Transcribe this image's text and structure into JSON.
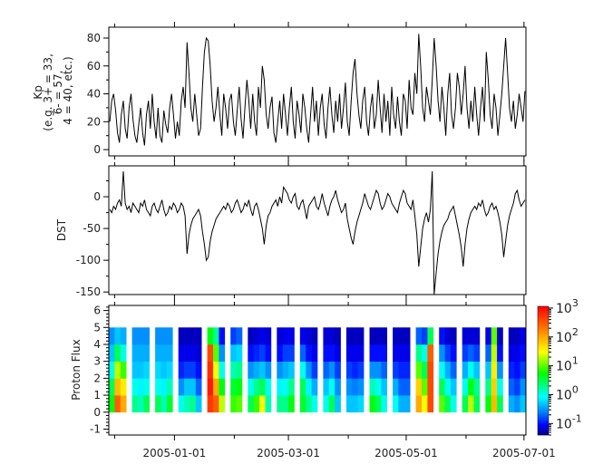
{
  "chart_data": [
    {
      "type": "line",
      "ylabel": [
        "Kp",
        "(e.g. 3+ = 33,",
        "6- = 57,",
        "4 = 40, etc.)"
      ],
      "ylim": [
        -4.5,
        87.8
      ],
      "yticks": [
        0,
        20,
        40,
        60,
        80
      ],
      "x_start": "2004-11-28",
      "x_step_days": 1,
      "values": [
        20,
        35,
        40,
        28,
        12,
        5,
        25,
        35,
        15,
        8,
        30,
        40,
        22,
        10,
        5,
        18,
        30,
        12,
        3,
        25,
        35,
        15,
        40,
        20,
        8,
        30,
        10,
        5,
        28,
        18,
        12,
        30,
        40,
        25,
        8,
        20,
        10,
        35,
        45,
        30,
        77,
        55,
        30,
        20,
        40,
        25,
        10,
        15,
        45,
        70,
        80,
        78,
        60,
        35,
        20,
        30,
        45,
        25,
        10,
        40,
        30,
        15,
        35,
        40,
        20,
        10,
        28,
        45,
        22,
        8,
        30,
        50,
        35,
        15,
        40,
        20,
        10,
        45,
        30,
        60,
        50,
        25,
        15,
        30,
        38,
        12,
        5,
        20,
        35,
        15,
        40,
        25,
        10,
        30,
        45,
        20,
        8,
        35,
        25,
        12,
        40,
        30,
        15,
        5,
        25,
        45,
        20,
        35,
        10,
        30,
        40,
        18,
        8,
        30,
        45,
        25,
        12,
        35,
        20,
        40,
        15,
        30,
        48,
        20,
        10,
        35,
        55,
        65,
        40,
        25,
        15,
        35,
        45,
        20,
        10,
        30,
        40,
        15,
        25,
        50,
        30,
        12,
        40,
        20,
        35,
        10,
        45,
        25,
        15,
        38,
        20,
        10,
        40,
        35,
        15,
        50,
        30,
        25,
        55,
        40,
        83,
        60,
        30,
        20,
        45,
        35,
        25,
        50,
        80,
        60,
        35,
        20,
        45,
        30,
        10,
        40,
        55,
        25,
        15,
        30,
        55,
        45,
        25,
        40,
        60,
        30,
        15,
        35,
        20,
        45,
        25,
        10,
        30,
        45,
        20,
        70,
        50,
        25,
        15,
        40,
        30,
        10,
        25,
        40,
        60,
        80,
        55,
        30,
        20,
        35,
        15,
        25,
        40,
        30,
        20,
        42
      ]
    },
    {
      "type": "line",
      "ylabel": [
        "DST"
      ],
      "ylim": [
        -154,
        48.6
      ],
      "yticks": [
        0,
        -50,
        -100,
        -150
      ],
      "x_start": "2004-11-28",
      "x_step_days": 1,
      "values": [
        -20,
        -25,
        -15,
        -20,
        -10,
        -5,
        -15,
        40,
        -10,
        -20,
        -15,
        -25,
        -10,
        -15,
        -20,
        -25,
        -10,
        -15,
        -5,
        -20,
        -25,
        -30,
        -15,
        -10,
        -20,
        -25,
        -15,
        -5,
        -20,
        -30,
        -25,
        -15,
        -20,
        -10,
        -15,
        -25,
        -20,
        -10,
        -15,
        -30,
        -90,
        -60,
        -45,
        -35,
        -30,
        -25,
        -20,
        -30,
        -55,
        -75,
        -100,
        -95,
        -70,
        -55,
        -45,
        -35,
        -30,
        -25,
        -20,
        -15,
        -20,
        -10,
        -15,
        -25,
        -20,
        -10,
        -5,
        -15,
        -25,
        -20,
        -10,
        -15,
        -5,
        -20,
        -30,
        -15,
        -10,
        -20,
        -35,
        -50,
        -75,
        -45,
        -30,
        -25,
        -15,
        -10,
        -5,
        -15,
        0,
        -10,
        15,
        10,
        5,
        -5,
        -10,
        0,
        5,
        -15,
        -20,
        -10,
        -5,
        -20,
        -35,
        -15,
        -10,
        -5,
        0,
        -15,
        -20,
        -10,
        5,
        -10,
        -20,
        -30,
        -15,
        -5,
        0,
        10,
        -5,
        -15,
        -25,
        -20,
        -10,
        -35,
        -50,
        -65,
        -75,
        -55,
        -40,
        -30,
        -20,
        -10,
        5,
        -5,
        -15,
        -20,
        -10,
        0,
        10,
        5,
        -10,
        -20,
        -15,
        -5,
        5,
        0,
        -10,
        -15,
        -20,
        -25,
        -10,
        0,
        10,
        5,
        -10,
        -15,
        -20,
        -5,
        -30,
        -60,
        -110,
        -80,
        -50,
        -35,
        -25,
        -40,
        -20,
        40,
        -155,
        -120,
        -90,
        -70,
        -55,
        -45,
        -40,
        -35,
        -25,
        -20,
        -15,
        -30,
        -45,
        -60,
        -80,
        -110,
        -75,
        -50,
        -35,
        -25,
        -20,
        -15,
        -20,
        -10,
        -15,
        -5,
        -20,
        -30,
        -25,
        -15,
        -10,
        -20,
        -15,
        -25,
        -40,
        -60,
        -95,
        -70,
        -45,
        -30,
        -20,
        -10,
        5,
        10,
        -5,
        -15,
        -10,
        -5
      ]
    },
    {
      "type": "heatmap",
      "ylabel": [
        "Proton Flux"
      ],
      "ylim": [
        -1.35,
        6.3
      ],
      "yticks": [
        -1,
        0,
        1,
        2,
        3,
        4,
        5,
        6
      ],
      "channels": [
        0,
        1,
        2,
        3,
        4
      ],
      "x_start": "2004-11-28",
      "x_step_days": 3,
      "color_scale": "log",
      "color_range": [
        0.04,
        1150
      ],
      "colorbar_ticks": [
        {
          "base": "10",
          "exp": "3",
          "value": 1000
        },
        {
          "base": "10",
          "exp": "2",
          "value": 100
        },
        {
          "base": "10",
          "exp": "1",
          "value": 10
        },
        {
          "base": "10",
          "exp": "0",
          "value": 1
        },
        {
          "base": "10",
          "exp": "-1",
          "value": 0.1
        }
      ],
      "colormap": [
        "#00007f",
        "#0000ff",
        "#0080ff",
        "#00ffff",
        "#00ff00",
        "#ffff00",
        "#ff8000",
        "#ff0000"
      ],
      "columns": [
        [
          5,
          3,
          1,
          0.5,
          0.3
        ],
        [
          300,
          80,
          20,
          3,
          0.5
        ],
        [
          100,
          40,
          8,
          1,
          0.4
        ],
        null,
        [
          2,
          1,
          0.5,
          0.4,
          0.3
        ],
        [
          1.5,
          0.8,
          0.5,
          0.4,
          0.3
        ],
        [
          3,
          1,
          0.6,
          0.4,
          0.3
        ],
        null,
        [
          3,
          1,
          0.6,
          0.4,
          0.3
        ],
        [
          1.5,
          0.8,
          0.5,
          0.4,
          0.3
        ],
        [
          4,
          1.5,
          0.6,
          0.4,
          0.3
        ],
        null,
        [
          1,
          0.3,
          0.12,
          0.08,
          0.06
        ],
        [
          1.5,
          0.5,
          0.15,
          0.08,
          0.06
        ],
        [
          2,
          0.5,
          0.15,
          0.08,
          0.06
        ],
        [
          0.5,
          0.2,
          0.1,
          0.07,
          0.06
        ],
        null,
        [
          500,
          800,
          600,
          400,
          5
        ],
        [
          300,
          100,
          30,
          10,
          2
        ],
        [
          20,
          5,
          1,
          0.3,
          0.1
        ],
        null,
        [
          8,
          4,
          1.5,
          0.5,
          0.15
        ],
        [
          10,
          5,
          2,
          0.6,
          0.2
        ],
        null,
        [
          3,
          1,
          0.3,
          0.1,
          0.06
        ],
        [
          8,
          2,
          0.4,
          0.12,
          0.07
        ],
        [
          30,
          3,
          0.5,
          0.15,
          0.08
        ],
        [
          1.5,
          1,
          0.3,
          0.1,
          0.07
        ],
        null,
        [
          2,
          0.8,
          0.3,
          0.1,
          0.07
        ],
        [
          2,
          1,
          0.4,
          0.15,
          0.08
        ],
        [
          5,
          2,
          0.5,
          0.15,
          0.08
        ],
        null,
        [
          4,
          3,
          1,
          0.2,
          0.08
        ],
        [
          2,
          0.8,
          0.3,
          0.1,
          0.07
        ],
        [
          1,
          0.4,
          0.15,
          0.08,
          0.06
        ],
        null,
        [
          1,
          0.5,
          0.2,
          0.1,
          0.07
        ],
        [
          3,
          1,
          0.3,
          0.1,
          0.07
        ],
        [
          0.5,
          0.3,
          0.15,
          0.08,
          0.06
        ],
        null,
        [
          0.5,
          0.3,
          0.15,
          0.08,
          0.06
        ],
        [
          0.5,
          0.25,
          0.12,
          0.08,
          0.06
        ],
        [
          0.6,
          0.3,
          0.15,
          0.08,
          0.06
        ],
        null,
        [
          5,
          1.5,
          0.3,
          0.1,
          0.06
        ],
        [
          3,
          1,
          0.3,
          0.1,
          0.06
        ],
        [
          1,
          0.5,
          0.2,
          0.1,
          0.06
        ],
        null,
        [
          1,
          0.4,
          0.15,
          0.08,
          0.06
        ],
        [
          0.4,
          0.2,
          0.12,
          0.08,
          0.06
        ],
        [
          0.4,
          0.2,
          0.12,
          0.08,
          0.06
        ],
        null,
        [
          100,
          60,
          10,
          2,
          0.2
        ],
        [
          30,
          10,
          3,
          1,
          0.15
        ],
        [
          400,
          400,
          400,
          300,
          3
        ],
        null,
        [
          10,
          3,
          1,
          0.3,
          0.1
        ],
        [
          3,
          1,
          0.4,
          0.15,
          0.07
        ],
        [
          1,
          0.5,
          0.2,
          0.1,
          0.06
        ],
        null,
        [
          3,
          1,
          0.4,
          0.15,
          0.07
        ],
        [
          20,
          5,
          1,
          0.2,
          0.07
        ],
        [
          3,
          2,
          0.5,
          0.15,
          0.07
        ],
        null,
        [
          5,
          2,
          0.5,
          0.2,
          0.08
        ],
        [
          80,
          60,
          40,
          20,
          10
        ],
        [
          3,
          1,
          0.3,
          0.1,
          0.06
        ],
        null,
        [
          0.4,
          0.2,
          0.12,
          0.08,
          0.06
        ],
        [
          0.3,
          0.15,
          0.1,
          0.08,
          0.06
        ],
        [
          0.5,
          0.3,
          0.15,
          0.1,
          0.08
        ]
      ]
    }
  ],
  "x_axis": {
    "xlim": [
      "2004-11-28",
      "2005-07-02"
    ],
    "major_ticks": [
      {
        "date": "2005-01-01",
        "label": "2005-01-01"
      },
      {
        "date": "2005-03-01",
        "label": "2005-03-01"
      },
      {
        "date": "2005-05-01",
        "label": "2005-05-01"
      },
      {
        "date": "2005-07-01",
        "label": "2005-07-01"
      }
    ],
    "minor_ticks": [
      "2004-12-01",
      "2005-02-01",
      "2005-04-01",
      "2005-06-01"
    ]
  }
}
